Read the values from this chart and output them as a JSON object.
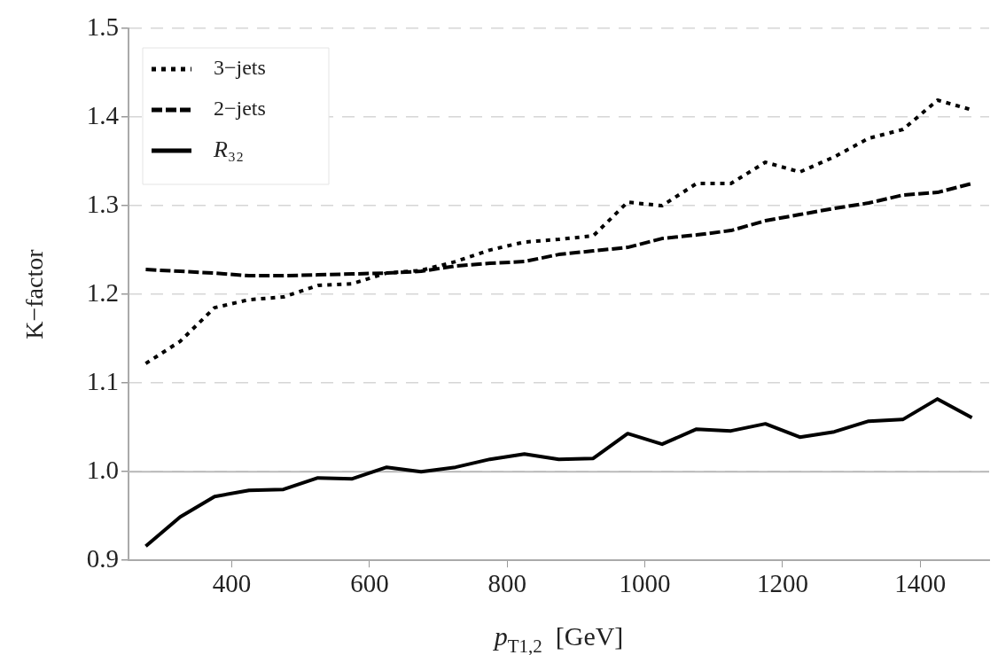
{
  "chart_data": {
    "type": "line",
    "xlabel": "p$_{T1,2}$  [GeV]",
    "ylabel": "K−factor",
    "xlim": [
      250,
      1500
    ],
    "xticks": [
      400,
      600,
      800,
      1000,
      1200,
      1400
    ],
    "ylim": [
      0.9,
      1.5
    ],
    "yticks": [
      {
        "value": 0.9,
        "label": "0.9"
      },
      {
        "value": 1.0,
        "label": "1.0"
      },
      {
        "value": 1.1,
        "label": "1.1"
      },
      {
        "value": 1.2,
        "label": "1.2"
      },
      {
        "value": 1.3,
        "label": "1.3"
      },
      {
        "value": 1.4,
        "label": "1.4"
      },
      {
        "value": 1.5,
        "label": "1.5"
      }
    ],
    "grid": "y",
    "legend": "top left",
    "marker": "none",
    "x": [
      275,
      325,
      375,
      425,
      475,
      525,
      575,
      625,
      675,
      725,
      775,
      825,
      875,
      925,
      975,
      1025,
      1075,
      1125,
      1175,
      1225,
      1275,
      1325,
      1375,
      1425,
      1475
    ],
    "ref_lines": [
      {
        "axis": "y",
        "value": 1.0,
        "color": "#bbbbbb",
        "line_style": "solid"
      }
    ],
    "series": [
      {
        "name": "3−jets",
        "color": "#000000",
        "line_style": "dotted",
        "values": [
          1.122,
          1.147,
          1.185,
          1.194,
          1.197,
          1.21,
          1.212,
          1.224,
          1.227,
          1.237,
          1.25,
          1.259,
          1.262,
          1.266,
          1.304,
          1.3,
          1.325,
          1.325,
          1.349,
          1.338,
          1.355,
          1.376,
          1.386,
          1.419,
          1.408
        ]
      },
      {
        "name": "2−jets",
        "color": "#000000",
        "line_style": "dashed",
        "values": [
          1.228,
          1.226,
          1.224,
          1.221,
          1.221,
          1.222,
          1.223,
          1.224,
          1.226,
          1.232,
          1.235,
          1.237,
          1.245,
          1.249,
          1.253,
          1.263,
          1.267,
          1.272,
          1.283,
          1.29,
          1.297,
          1.303,
          1.312,
          1.315,
          1.325
        ]
      },
      {
        "name": "R₃₂",
        "color": "#000000",
        "line_style": "solid",
        "values": [
          0.916,
          0.949,
          0.972,
          0.979,
          0.98,
          0.993,
          0.992,
          1.005,
          1.0,
          1.005,
          1.014,
          1.02,
          1.014,
          1.015,
          1.043,
          1.031,
          1.048,
          1.046,
          1.054,
          1.039,
          1.045,
          1.057,
          1.059,
          1.082,
          1.061
        ]
      }
    ]
  }
}
